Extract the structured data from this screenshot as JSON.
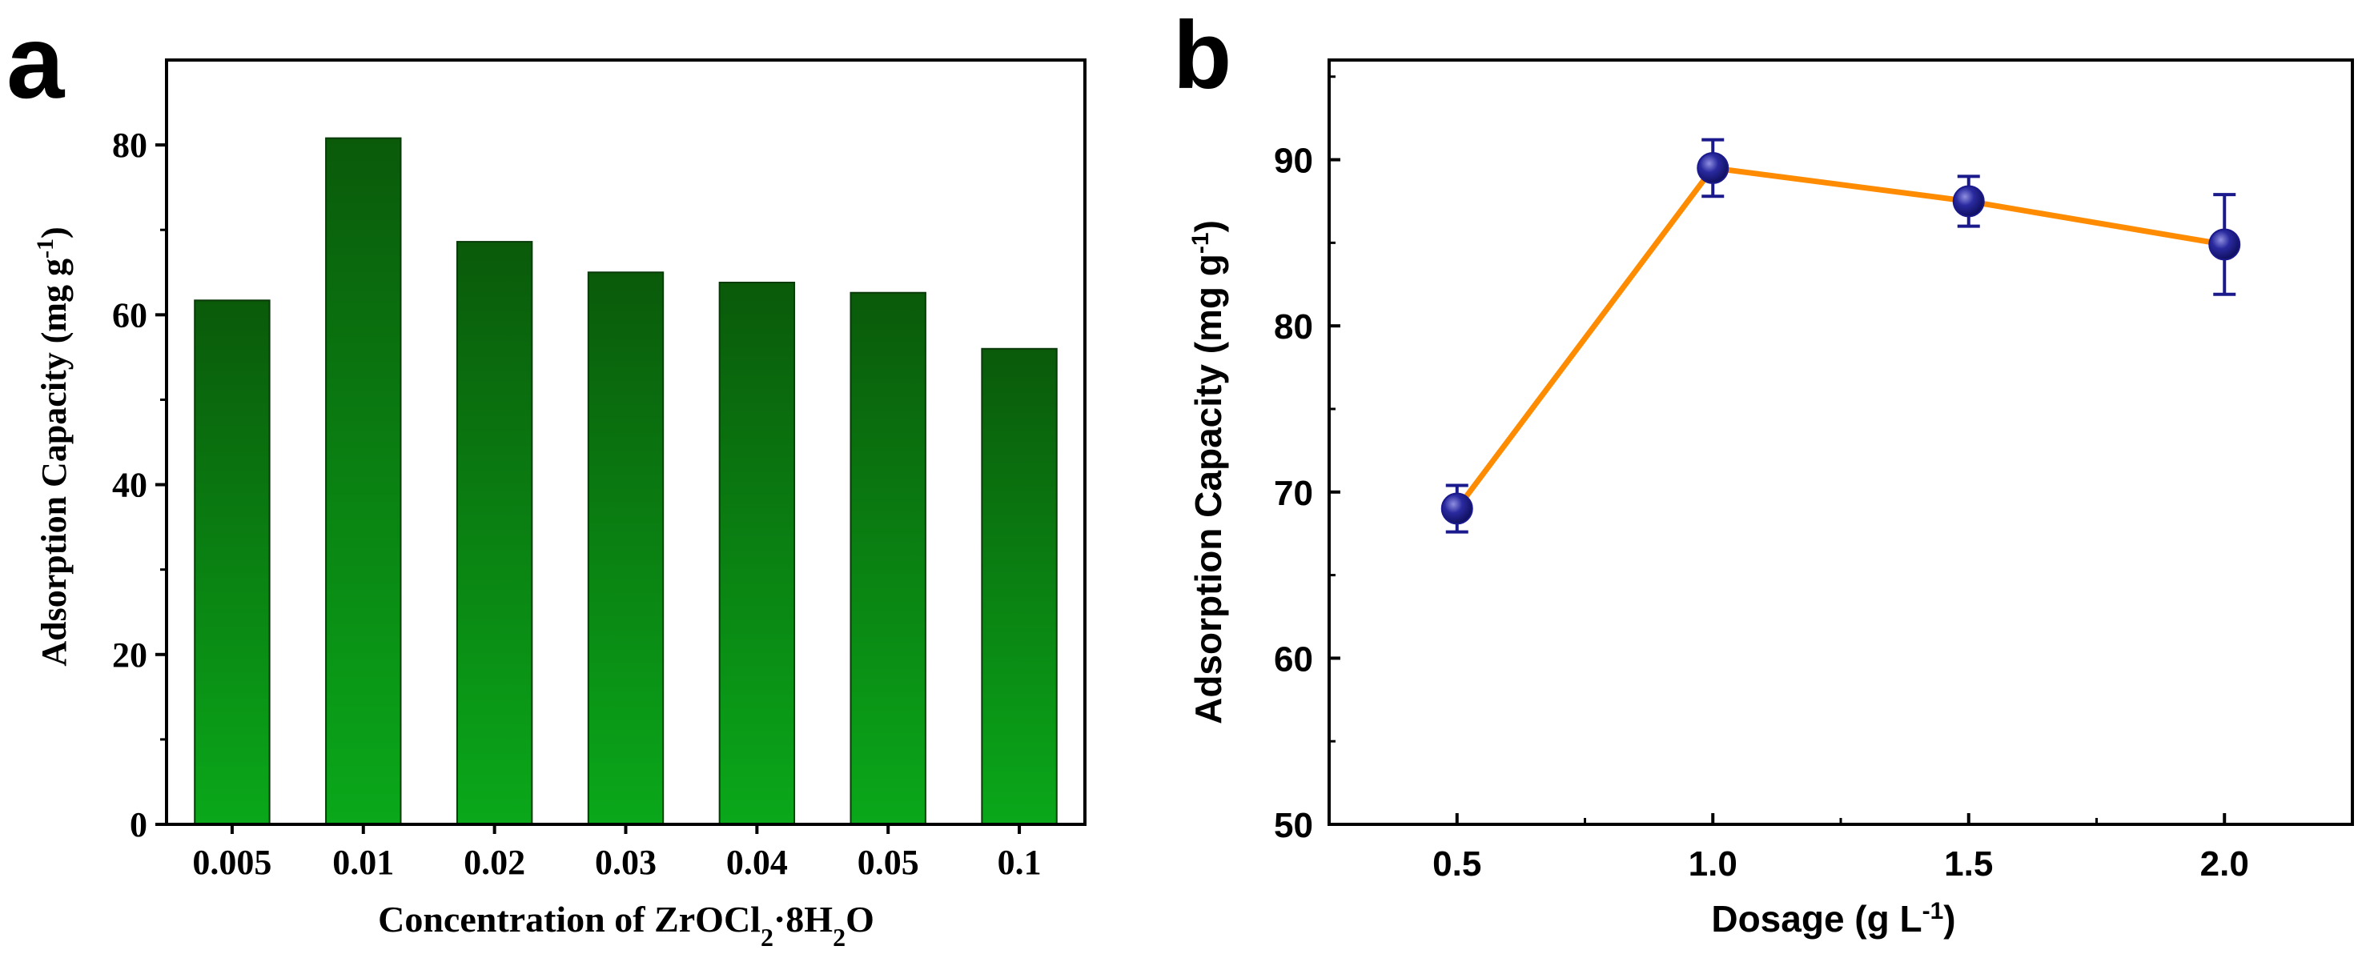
{
  "chart_data": [
    {
      "panel_label": "a",
      "type": "bar",
      "categories": [
        "0.005",
        "0.01",
        "0.02",
        "0.03",
        "0.04",
        "0.05",
        "0.1"
      ],
      "values": [
        61.7,
        80.8,
        68.6,
        65.0,
        63.8,
        62.6,
        56.0
      ],
      "ylabel": {
        "main": "Adsorption Capacity (mg g",
        "sup": "-1",
        "close": ")"
      },
      "xlabel": {
        "main": "Concentration of ZrOCl",
        "sub1": "2",
        "mid": "·8H",
        "sub2": "2",
        "end": "O"
      },
      "ylim": [
        0,
        90
      ],
      "yticks": [
        "0",
        "20",
        "40",
        "60",
        "80"
      ],
      "colors": {
        "bar_top": "#0a5a0a",
        "bar_bottom": "#0aa81a",
        "axis": "#000000"
      }
    },
    {
      "panel_label": "b",
      "type": "line",
      "x": [
        0.5,
        1.0,
        1.5,
        2.0
      ],
      "xtick_labels": [
        "0.5",
        "1.0",
        "1.5",
        "2.0"
      ],
      "y": [
        69.0,
        89.5,
        87.5,
        84.9
      ],
      "yerr": [
        1.4,
        1.7,
        1.5,
        3.0
      ],
      "ylabel": {
        "main": "Adsorption Capacity (mg g",
        "sup": "-1",
        "close": ")"
      },
      "xlabel": {
        "main": "Dosage (g L",
        "sup": "-1",
        "close": ")"
      },
      "xlim": [
        0.25,
        2.25
      ],
      "ylim": [
        50,
        96
      ],
      "yticks": [
        "50",
        "60",
        "70",
        "80",
        "90"
      ],
      "colors": {
        "line": "#ff8c00",
        "marker": "#1a1a8c",
        "marker_highlight": "#8f8fe0",
        "error": "#1a1a8c",
        "axis": "#000000"
      }
    }
  ]
}
